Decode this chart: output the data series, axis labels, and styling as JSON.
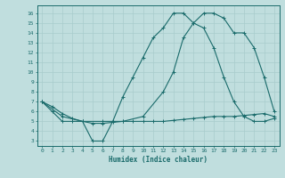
{
  "xlabel": "Humidex (Indice chaleur)",
  "xlabel_color": "#1a6b6b",
  "bg_color": "#c0dede",
  "line_color": "#1a6b6b",
  "grid_color": "#a8cccc",
  "xlim": [
    -0.5,
    23.5
  ],
  "ylim": [
    2.5,
    16.8
  ],
  "yticks": [
    3,
    4,
    5,
    6,
    7,
    8,
    9,
    10,
    11,
    12,
    13,
    14,
    15,
    16
  ],
  "xticks": [
    0,
    1,
    2,
    3,
    4,
    5,
    6,
    7,
    8,
    9,
    10,
    11,
    12,
    13,
    14,
    15,
    16,
    17,
    18,
    19,
    20,
    21,
    22,
    23
  ],
  "line1_x": [
    0,
    1,
    2,
    3,
    4,
    5,
    6,
    7,
    8,
    9,
    10,
    11,
    12,
    13,
    14,
    15,
    16,
    17,
    18,
    19,
    20,
    21,
    22,
    23
  ],
  "line1_y": [
    7.0,
    6.0,
    5.0,
    5.0,
    5.0,
    3.0,
    3.0,
    5.0,
    7.5,
    9.5,
    11.5,
    13.5,
    14.5,
    16.0,
    16.0,
    15.0,
    14.5,
    12.5,
    9.5,
    7.0,
    5.5,
    5.0,
    5.0,
    5.3
  ],
  "line2_x": [
    0,
    1,
    2,
    3,
    4,
    5,
    6,
    7,
    8,
    9,
    10,
    11,
    12,
    13,
    14,
    15,
    16,
    17,
    18,
    19,
    20,
    21,
    22,
    23
  ],
  "line2_y": [
    7.0,
    6.5,
    5.8,
    5.3,
    5.0,
    4.8,
    4.8,
    4.9,
    5.0,
    5.0,
    5.0,
    5.0,
    5.0,
    5.1,
    5.2,
    5.3,
    5.4,
    5.5,
    5.5,
    5.5,
    5.6,
    5.7,
    5.8,
    5.5
  ],
  "line3_x": [
    0,
    2,
    4,
    6,
    8,
    10,
    12,
    13,
    14,
    15,
    16,
    17,
    18,
    19,
    20,
    21,
    22,
    23
  ],
  "line3_y": [
    7.0,
    5.5,
    5.0,
    5.0,
    5.0,
    5.5,
    8.0,
    10.0,
    13.5,
    15.0,
    16.0,
    16.0,
    15.5,
    14.0,
    14.0,
    12.5,
    9.5,
    6.0
  ]
}
